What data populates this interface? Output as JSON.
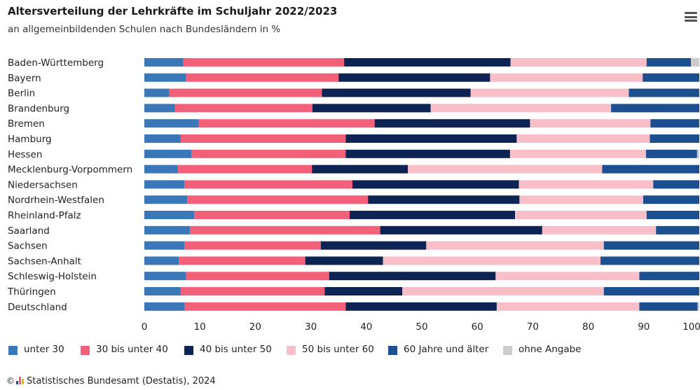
{
  "title": "Altersverteilung der Lehrkräfte im Schuljahr 2022/2023",
  "subtitle": "an allgemeinbildenden Schulen nach Bundesländern in %",
  "menu_icon": "hamburger-menu-icon",
  "footer": {
    "copyright": "©",
    "logo_icon": "destatis-logo-icon",
    "text": "Statistisches Bundesamt (Destatis), 2024"
  },
  "chart_data": {
    "type": "bar",
    "orientation": "horizontal",
    "stacked": true,
    "title": "Altersverteilung der Lehrkräfte im Schuljahr 2022/2023",
    "subtitle": "an allgemeinbildenden Schulen nach Bundesländern in %",
    "xlim": [
      0,
      100
    ],
    "xticks": [
      0,
      10,
      20,
      30,
      40,
      50,
      60,
      70,
      80,
      90,
      100
    ],
    "grid": false,
    "legend_position": "bottom",
    "categories": [
      "Baden-Württemberg",
      "Bayern",
      "Berlin",
      "Brandenburg",
      "Bremen",
      "Hamburg",
      "Hessen",
      "Mecklenburg-Vorpommern",
      "Niedersachsen",
      "Nordrhein-Westfalen",
      "Rheinland-Pfalz",
      "Saarland",
      "Sachsen",
      "Sachsen-Anhalt",
      "Schleswig-Holstein",
      "Thüringen",
      "Deutschland"
    ],
    "series": [
      {
        "name": "unter 30",
        "color": "#3a77b8",
        "values": [
          7.0,
          7.5,
          4.5,
          5.5,
          9.8,
          6.5,
          8.5,
          6.0,
          7.2,
          7.7,
          9.0,
          8.2,
          7.2,
          6.2,
          7.5,
          6.5,
          7.3
        ]
      },
      {
        "name": "30 bis unter 40",
        "color": "#f2607a",
        "values": [
          29.0,
          27.5,
          27.5,
          24.8,
          31.7,
          29.8,
          27.8,
          24.2,
          30.3,
          32.6,
          28.0,
          34.3,
          24.6,
          22.8,
          25.8,
          26.0,
          29.0
        ]
      },
      {
        "name": "40 bis unter 50",
        "color": "#0c2353",
        "values": [
          30.0,
          27.3,
          26.8,
          21.3,
          28.0,
          30.8,
          29.6,
          17.3,
          30.0,
          27.3,
          29.8,
          29.2,
          19.0,
          14.0,
          30.0,
          14.0,
          27.2
        ]
      },
      {
        "name": "50 bis unter 60",
        "color": "#f8bfc8",
        "values": [
          24.5,
          27.5,
          28.5,
          32.5,
          21.7,
          24.0,
          24.5,
          35.0,
          24.2,
          22.3,
          23.7,
          20.5,
          32.0,
          39.2,
          25.9,
          36.3,
          25.7
        ]
      },
      {
        "name": "60 Jahre und älter",
        "color": "#1b4f8f",
        "values": [
          8.0,
          10.2,
          12.7,
          15.9,
          8.8,
          8.9,
          9.2,
          17.5,
          8.3,
          10.1,
          9.5,
          7.8,
          17.2,
          17.8,
          10.8,
          17.2,
          10.5
        ]
      },
      {
        "name": "ohne Angabe",
        "color": "#cccccc",
        "values": [
          1.5,
          0.0,
          0.0,
          0.0,
          0.0,
          0.0,
          0.4,
          0.0,
          0.0,
          0.0,
          0.0,
          0.0,
          0.0,
          0.0,
          0.0,
          0.0,
          0.3
        ]
      }
    ]
  }
}
